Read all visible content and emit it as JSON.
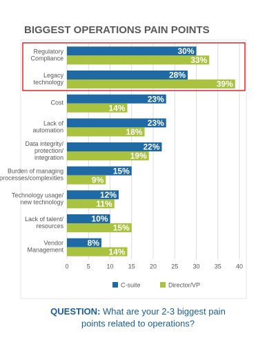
{
  "chart_data": {
    "type": "bar",
    "orientation": "horizontal",
    "title": "BIGGEST OPERATIONS PAIN POINTS",
    "categories": [
      [
        "Regulatory",
        "Compliance"
      ],
      [
        "Legacy",
        "technology"
      ],
      [
        "Cost"
      ],
      [
        "Lack of",
        "automation"
      ],
      [
        "Data integrity/",
        "protection/",
        "integration"
      ],
      [
        "Burden of managing",
        "processes/complexities"
      ],
      [
        "Technology usage/",
        "new technology"
      ],
      [
        "Lack of talent/",
        "resources"
      ],
      [
        "Vendor",
        "Management"
      ]
    ],
    "series": [
      {
        "name": "C-suite",
        "color": "#1f6aa5",
        "values": [
          30,
          28,
          23,
          23,
          22,
          15,
          12,
          10,
          8
        ],
        "value_labels": [
          "30%",
          "28%",
          "23%",
          "23%",
          "22%",
          "15%",
          "12%",
          "10%",
          "8%"
        ]
      },
      {
        "name": "Director/VP",
        "color": "#a9c23f",
        "values": [
          33,
          39,
          14,
          18,
          19,
          9,
          11,
          15,
          14
        ],
        "value_labels": [
          "33%",
          "39%",
          "14%",
          "18%",
          "19%",
          "9%",
          "11%",
          "15%",
          "14%"
        ]
      }
    ],
    "xlim": [
      0,
      40
    ],
    "xticks": [
      0,
      5,
      10,
      15,
      20,
      25,
      30,
      35,
      40
    ],
    "grid": true,
    "question_label": "QUESTION:",
    "question": [
      "What are your 2-3 biggest pain",
      "points related to operations?"
    ]
  }
}
